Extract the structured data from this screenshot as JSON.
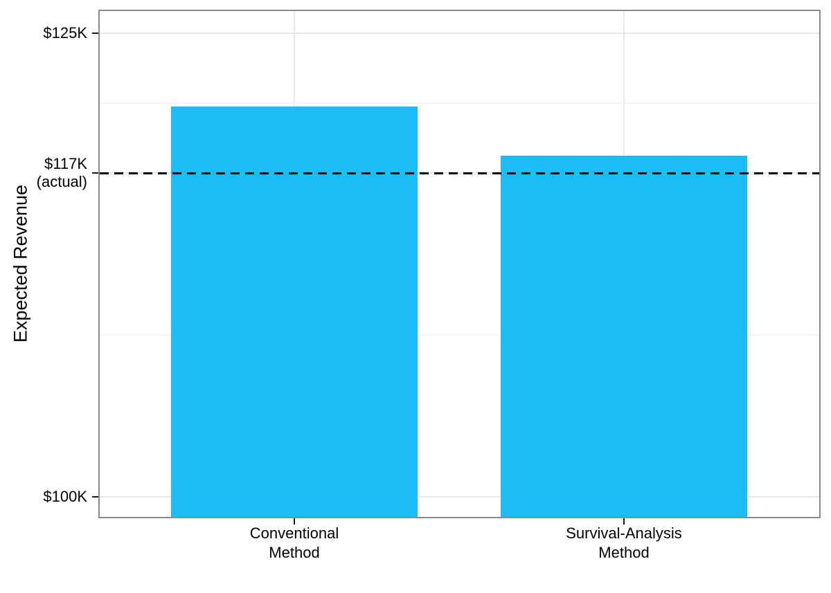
{
  "chart_data": {
    "type": "bar",
    "title": "",
    "ylabel": "Expected Revenue",
    "xlabel": "",
    "categories": [
      [
        "Conventional",
        "Method"
      ],
      [
        "Survival-Analysis",
        "Method"
      ]
    ],
    "values": [
      120.8,
      118
    ],
    "y_ticks": [
      {
        "value": 125,
        "label_lines": [
          "$125K"
        ]
      },
      {
        "value": 117,
        "label_lines": [
          "$117K",
          "(actual)"
        ]
      },
      {
        "value": 100,
        "label_lines": [
          "$100K"
        ]
      }
    ],
    "reference_line": {
      "value": 117,
      "label": "$117K (actual)",
      "style": "dashed"
    },
    "ylim": [
      98.8,
      126.3
    ],
    "grid": true,
    "legend": false,
    "colors": {
      "bar_fill": "#1CBDF6",
      "reference_line": "#000000",
      "grid_major": "#E7E7E7",
      "grid_minor": "#F4F4F4",
      "panel_border": "#8A8A8A",
      "tick": "#1A1A1A",
      "text": "#000000",
      "background": "#FFFFFF"
    }
  }
}
